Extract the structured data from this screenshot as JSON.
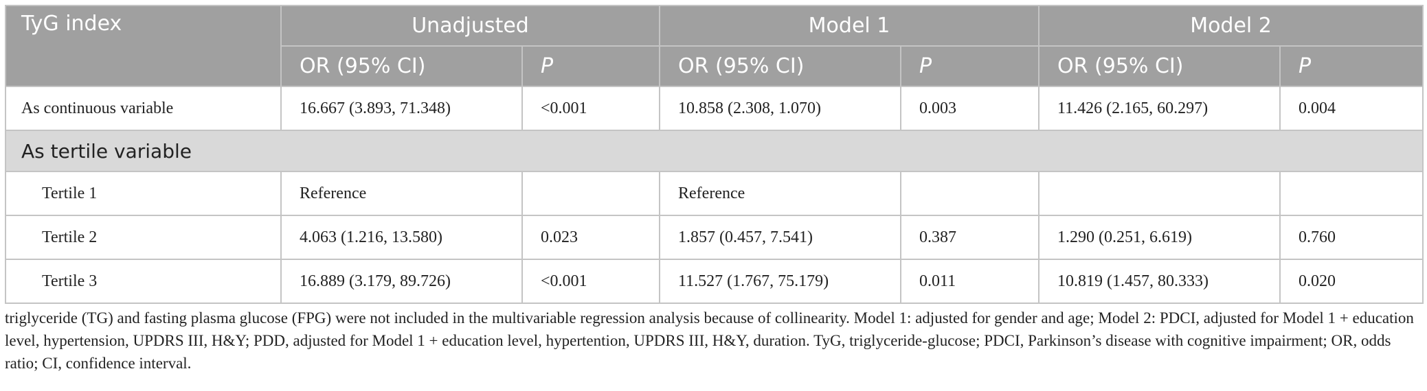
{
  "table": {
    "header": {
      "corner": "TyG index",
      "groups": [
        "Unadjusted",
        "Model 1",
        "Model 2"
      ],
      "subheaders": [
        "OR (95% CI)",
        "P"
      ]
    },
    "rows": [
      [
        "As continuous variable",
        "16.667 (3.893, 71.348)",
        "<0.001",
        "10.858 (2.308, 1.070)",
        "0.003",
        "11.426 (2.165, 60.297)",
        "0.004"
      ],
      [
        "As tertile variable"
      ],
      [
        "Tertile 1",
        "Reference",
        null,
        "Reference",
        null,
        null,
        null
      ],
      [
        "Tertile 2",
        "4.063 (1.216, 13.580)",
        "0.023",
        "1.857 (0.457, 7.541)",
        "0.387",
        "1.290 (0.251, 6.619)",
        "0.760"
      ],
      [
        "Tertile 3",
        "16.889 (3.179, 89.726)",
        "<0.001",
        "11.527 (1.767, 75.179)",
        "0.011",
        "10.819 (1.457, 80.333)",
        "0.020"
      ]
    ]
  },
  "footnote": "triglyceride (TG) and fasting plasma glucose (FPG) were not included in the multivariable regression analysis because of collinearity. Model 1: adjusted for gender and age; Model 2: PDCI, adjusted for Model 1 + education level, hypertension, UPDRS III, H&Y; PDD, adjusted for Model 1 + education level, hypertention, UPDRS III, H&Y, duration. TyG, triglyceride-glucose; PDCI, Parkinson’s disease with cognitive impairment; OR, odds ratio; CI, confidence interval."
}
